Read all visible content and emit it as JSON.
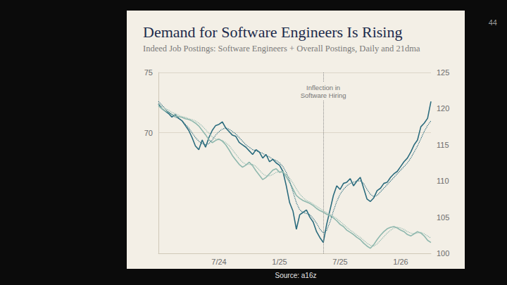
{
  "chart_data": {
    "type": "line",
    "title": "Demand for Software Engineers Is Rising",
    "subtitle": "Indeed Job Postings: Software Engineers + Overall Postings, Daily and 21dma",
    "categories": [
      null,
      null,
      null,
      null,
      null,
      null,
      null,
      null,
      null,
      null,
      null,
      null,
      null,
      null,
      null,
      null,
      null,
      null,
      "7/24",
      null,
      null,
      null,
      null,
      null,
      null,
      null,
      null,
      null,
      null,
      null,
      null,
      null,
      null,
      null,
      null,
      null,
      "1/25",
      null,
      null,
      null,
      null,
      null,
      null,
      null,
      null,
      null,
      null,
      null,
      null,
      null,
      null,
      null,
      null,
      null,
      "7/25",
      null,
      null,
      null,
      null,
      null,
      null,
      null,
      null,
      null,
      null,
      null,
      null,
      null,
      null,
      null,
      null,
      null,
      "1/26",
      null,
      null,
      null,
      null,
      null,
      null,
      null,
      null,
      null
    ],
    "series": [
      {
        "color": "#2b6c7e",
        "line_style": "solid",
        "axis": "y",
        "values": [
          72.4,
          72.0,
          71.8,
          71.6,
          71.3,
          71.5,
          71.2,
          71.0,
          70.6,
          70.2,
          69.6,
          68.9,
          68.6,
          69.4,
          68.8,
          69.6,
          70.2,
          70.6,
          70.7,
          70.9,
          70.4,
          70.1,
          69.8,
          69.7,
          69.2,
          69.0,
          68.8,
          68.5,
          68.2,
          68.6,
          68.4,
          67.9,
          68.2,
          67.6,
          67.8,
          67.5,
          67.3,
          66.8,
          65.6,
          64.2,
          63.5,
          62.0,
          63.2,
          63.4,
          63.6,
          63.0,
          62.6,
          61.8,
          61.3,
          60.9,
          62.4,
          63.6,
          64.8,
          65.6,
          65.3,
          65.8,
          65.9,
          66.2,
          65.6,
          66.0,
          66.3,
          65.4,
          64.5,
          64.3,
          64.6,
          65.2,
          65.4,
          65.8,
          65.9,
          66.3,
          66.6,
          66.8,
          67.2,
          67.6,
          67.9,
          68.4,
          69.0,
          69.4,
          70.5,
          70.8,
          71.2,
          72.6
        ]
      },
      {
        "color": "#2b6c7e",
        "line_style": "dotted",
        "axis": "y",
        "values": [
          72.6,
          72.3,
          72.0,
          71.7,
          71.5,
          71.3,
          71.2,
          71.0,
          70.7,
          70.4,
          70.0,
          69.6,
          69.3,
          69.1,
          69.0,
          69.1,
          69.4,
          69.8,
          70.1,
          70.3,
          70.4,
          70.3,
          70.1,
          69.9,
          69.6,
          69.3,
          69.0,
          68.8,
          68.6,
          68.5,
          68.4,
          68.3,
          68.1,
          68.0,
          67.8,
          67.7,
          67.5,
          67.2,
          66.7,
          66.0,
          65.1,
          64.2,
          63.6,
          63.4,
          63.3,
          63.2,
          62.9,
          62.5,
          62.0,
          61.7,
          61.9,
          62.6,
          63.5,
          64.3,
          64.9,
          65.3,
          65.6,
          65.8,
          65.9,
          66.0,
          66.0,
          65.8,
          65.3,
          64.9,
          64.7,
          64.8,
          65.1,
          65.4,
          65.7,
          66.0,
          66.3,
          66.6,
          66.9,
          67.2,
          67.5,
          67.9,
          68.4,
          68.9,
          69.5,
          70.1,
          70.6,
          71.0
        ]
      },
      {
        "color": "#8fb8ae",
        "line_style": "solid",
        "axis": "y2",
        "values": [
          120.4,
          120.0,
          119.7,
          119.5,
          119.2,
          119.0,
          118.9,
          118.8,
          118.6,
          118.5,
          118.3,
          118.0,
          117.6,
          117.0,
          116.4,
          115.7,
          115.3,
          115.6,
          115.8,
          115.5,
          115.0,
          114.3,
          113.5,
          112.9,
          112.3,
          111.9,
          112.2,
          112.6,
          112.1,
          111.4,
          110.8,
          110.2,
          110.5,
          111.0,
          111.5,
          111.7,
          111.2,
          111.3,
          110.6,
          109.8,
          108.9,
          108.0,
          107.6,
          107.3,
          107.1,
          106.9,
          106.6,
          106.2,
          105.9,
          105.7,
          105.4,
          105.2,
          104.9,
          104.5,
          104.0,
          103.7,
          103.2,
          102.9,
          102.6,
          102.2,
          101.9,
          101.4,
          101.0,
          100.7,
          101.2,
          101.9,
          102.5,
          103.0,
          103.4,
          103.6,
          103.7,
          103.5,
          103.2,
          103.0,
          102.6,
          102.4,
          102.7,
          103.0,
          102.8,
          102.4,
          101.8,
          101.5
        ]
      },
      {
        "color": "#8fb8ae",
        "line_style": "dotted",
        "axis": "y2",
        "values": [
          120.6,
          120.3,
          120.0,
          119.8,
          119.5,
          119.3,
          119.1,
          118.9,
          118.8,
          118.6,
          118.5,
          118.3,
          118.0,
          117.6,
          117.1,
          116.6,
          116.1,
          115.8,
          115.7,
          115.6,
          115.3,
          114.9,
          114.3,
          113.7,
          113.1,
          112.6,
          112.3,
          112.3,
          112.3,
          112.0,
          111.5,
          111.0,
          110.7,
          110.7,
          110.9,
          111.2,
          111.3,
          111.2,
          110.9,
          110.4,
          109.7,
          108.9,
          108.2,
          107.7,
          107.3,
          107.1,
          106.8,
          106.5,
          106.2,
          105.9,
          105.6,
          105.4,
          105.1,
          104.8,
          104.4,
          104.0,
          103.6,
          103.2,
          102.9,
          102.5,
          102.2,
          101.8,
          101.4,
          101.1,
          101.0,
          101.3,
          101.8,
          102.3,
          102.8,
          103.2,
          103.5,
          103.6,
          103.5,
          103.3,
          103.0,
          102.8,
          102.7,
          102.8,
          102.9,
          102.7,
          102.4,
          102.1
        ]
      }
    ],
    "ylim": [
      60,
      75
    ],
    "yticks": [
      70,
      75
    ],
    "y2lim": [
      100,
      125
    ],
    "y2ticks": [
      100,
      105,
      110,
      115,
      120,
      125
    ],
    "grid": true,
    "annotations": [
      {
        "text": "Inflection in Software Hiring",
        "at": 49,
        "line_style": "dotted"
      }
    ]
  },
  "slide": {
    "page_number": "44",
    "source": "Source: a16z"
  }
}
